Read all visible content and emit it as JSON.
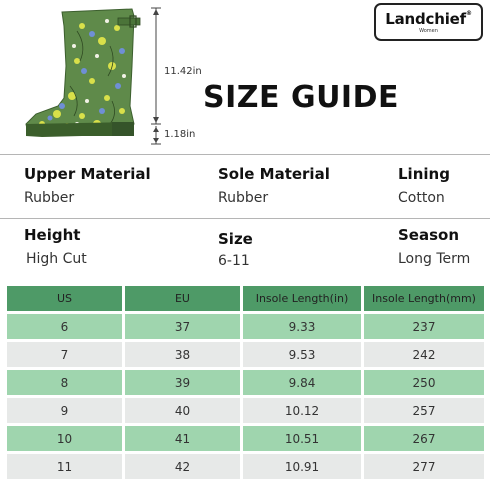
{
  "logo": {
    "brand": "Landchief",
    "registered": "®",
    "sub": "Women"
  },
  "title": "SIZE GUIDE",
  "dimensions": {
    "shaft_height": "11.42in",
    "heel_height": "1.18in"
  },
  "info_row_1": [
    {
      "label": "Upper Material",
      "value": "Rubber"
    },
    {
      "label": "Sole Material",
      "value": "Rubber"
    },
    {
      "label": "Lining",
      "value": "Cotton"
    }
  ],
  "info_row_2": [
    {
      "label": "Height",
      "value": "High Cut"
    },
    {
      "label": "Size",
      "value": "6-11"
    },
    {
      "label": "Season",
      "value": "Long Term"
    }
  ],
  "table": {
    "headers": [
      "US",
      "EU",
      "Insole Length(in)",
      "Insole Length(mm)"
    ],
    "rows": [
      [
        "6",
        "37",
        "9.33",
        "237"
      ],
      [
        "7",
        "38",
        "9.53",
        "242"
      ],
      [
        "8",
        "39",
        "9.84",
        "250"
      ],
      [
        "9",
        "40",
        "10.12",
        "257"
      ],
      [
        "10",
        "41",
        "10.51",
        "267"
      ],
      [
        "11",
        "42",
        "10.91",
        "277"
      ]
    ]
  },
  "colors": {
    "header_green": "#4e9a67",
    "row_green": "#9fd5ae",
    "row_gray": "#e7e9e8",
    "boot_green": "#5f8a4a"
  }
}
